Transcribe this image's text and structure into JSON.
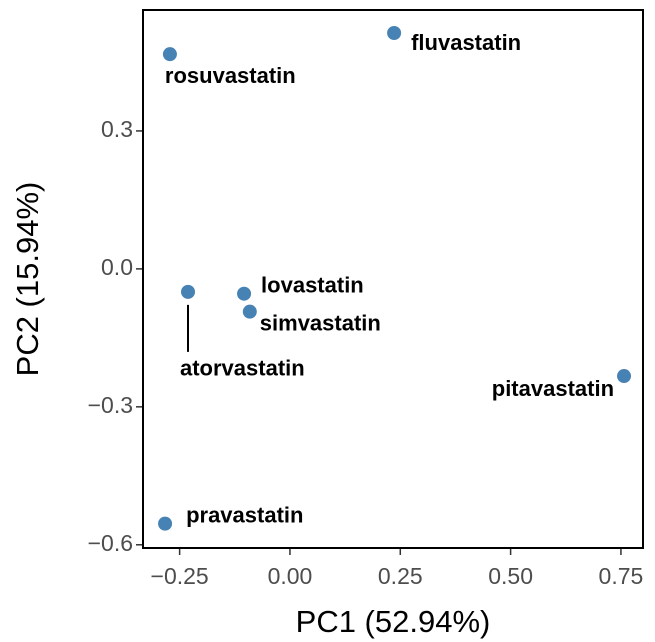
{
  "chart_data": {
    "type": "scatter",
    "xlabel": "PC1 (52.94%)",
    "ylabel": "PC2 (15.94%)",
    "labels": [
      "rosuvastatin",
      "fluvastatin",
      "atorvastatin",
      "lovastatin",
      "simvastatin",
      "pitavastatin",
      "pravastatin"
    ],
    "x": [
      -0.272,
      0.236,
      -0.231,
      -0.104,
      -0.091,
      0.757,
      -0.283
    ],
    "values": [
      0.467,
      0.513,
      -0.05,
      -0.054,
      -0.093,
      -0.233,
      -0.554
    ],
    "color": "#4682b4",
    "xlim": [
      -0.333,
      0.8
    ],
    "ylim": [
      -0.607,
      0.563
    ],
    "xticks": [
      {
        "value": -0.25,
        "label": "−0.25"
      },
      {
        "value": 0,
        "label": "0.00"
      },
      {
        "value": 0.25,
        "label": "0.25"
      },
      {
        "value": 0.5,
        "label": "0.50"
      },
      {
        "value": 0.75,
        "label": "0.75"
      }
    ],
    "yticks": [
      {
        "value": -0.6,
        "label": "−0.6"
      },
      {
        "value": -0.3,
        "label": "−0.3"
      },
      {
        "value": 0,
        "label": "0.0"
      },
      0.3
    ]
  }
}
